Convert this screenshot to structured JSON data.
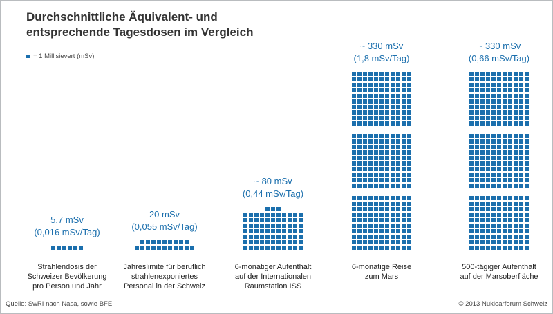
{
  "header": {
    "title_line1": "Durchschnittliche Äquivalent- und",
    "title_line2": "entsprechende Tagesdosen im Vergleich"
  },
  "legend": {
    "label": "= 1 Millisievert (mSv)",
    "square_color": "#1b6fad"
  },
  "footer": {
    "source": "Quelle: SwRI nach Nasa, sowie BFE",
    "copyright": "© 2013 Nuklearforum Schweiz"
  },
  "colors": {
    "accent": "#1b6fad",
    "text": "#222222",
    "frame": "#b9bcbf"
  },
  "chart_data": {
    "type": "bar",
    "unit_note": "Each square = 1 mSv",
    "categories": [
      "Strahlendosis der Schweizer Bevölkerung pro Person und Jahr",
      "Jahreslimite für beruflich strahlenexponiertes Personal in der Schweiz",
      "6-monatiger Aufenthalt auf der Internationalen Raumstation ISS",
      "6-monatige Reise zum Mars",
      "500-tägiger Aufenthalt auf der Marsoberfläche"
    ],
    "values": [
      5.7,
      20,
      80,
      330,
      330
    ],
    "series": [
      {
        "values": [
          5.7,
          20,
          80,
          330,
          330
        ]
      }
    ],
    "columns": [
      {
        "dose_label": "5,7 mSv",
        "daily_label": "(0,016 mSv/Tag)",
        "value": 5.7,
        "label_lines": [
          "Strahlendosis der",
          "Schweizer Bevölkerung",
          "pro Person und Jahr"
        ]
      },
      {
        "dose_label": "20 mSv",
        "daily_label": "(0,055 mSv/Tag)",
        "value": 20,
        "label_lines": [
          "Jahreslimite für beruflich",
          "strahlenexponiertes",
          "Personal in der Schweiz"
        ]
      },
      {
        "dose_label": "~ 80 mSv",
        "daily_label": "(0,44 mSv/Tag)",
        "value": 80,
        "label_lines": [
          "6-monatiger Aufenthalt",
          "auf der Internationalen",
          "Raumstation ISS"
        ]
      },
      {
        "dose_label": "~ 330 mSv",
        "daily_label": "(1,8 mSv/Tag)",
        "value": 330,
        "label_lines": [
          "6-monatige Reise",
          "zum Mars"
        ]
      },
      {
        "dose_label": "~ 330 mSv",
        "daily_label": "(0,66 mSv/Tag)",
        "value": 330,
        "label_lines": [
          "500-tägiger Aufenthalt",
          "auf der Marsoberfläche"
        ]
      }
    ],
    "grid": false
  }
}
